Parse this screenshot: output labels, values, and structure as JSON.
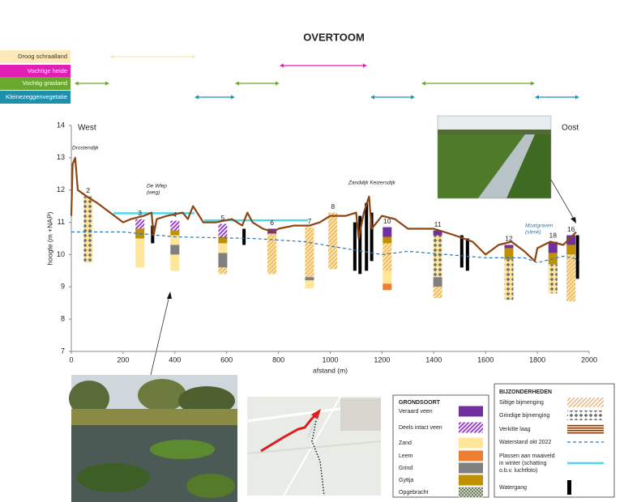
{
  "chart_data": {
    "type": "profile",
    "title": "OVERTOOM",
    "x_label": "afstand (m)",
    "y_label": "hoogte (m +NAP)",
    "xlim": [
      0,
      2000
    ],
    "ylim": [
      7,
      14
    ],
    "xticks": [
      0,
      200,
      400,
      600,
      800,
      1000,
      1200,
      1400,
      1600,
      1800,
      2000
    ],
    "yticks": [
      7,
      8,
      9,
      10,
      11,
      12,
      13,
      14
    ],
    "side_labels": [
      "West",
      "Oost"
    ],
    "annotations": [
      {
        "text": [
          "Drostendijk"
        ]
      },
      {
        "text": [
          "De Wlep",
          "(weg)"
        ]
      },
      {
        "text": [
          "Zanddijk Keizersdijk"
        ]
      },
      {
        "text": [
          "Moatgraven",
          "(slenk)"
        ],
        "color": "#2e75b6"
      }
    ],
    "vegetation": [
      {
        "name": "Droog schraalland",
        "color": "#fde9b8",
        "ranges": [
          [
            147,
            482
          ]
        ]
      },
      {
        "name": "Vochtige heide",
        "color": "#e21fb4",
        "ranges": [
          [
            804,
            1142
          ]
        ]
      },
      {
        "name": "Vochtig grasland",
        "color": "#6aa82d",
        "ranges": [
          [
            12,
            147
          ],
          [
            632,
            804
          ],
          [
            1352,
            1790
          ]
        ]
      },
      {
        "name": "Kleinezeggenvegetatie",
        "color": "#1f8fae",
        "ranges": [
          [
            476,
            632
          ],
          [
            1155,
            1327
          ],
          [
            1790,
            1962
          ]
        ]
      }
    ],
    "profile": {
      "color": "#8b4513",
      "x": [
        0,
        5,
        15,
        25,
        60,
        100,
        150,
        200,
        230,
        280,
        310,
        318,
        330,
        370,
        430,
        450,
        470,
        510,
        560,
        620,
        660,
        680,
        700,
        740,
        780,
        800,
        860,
        920,
        960,
        1000,
        1060,
        1100,
        1110,
        1130,
        1150,
        1160,
        1200,
        1250,
        1300,
        1400,
        1480,
        1550,
        1600,
        1650,
        1700,
        1750,
        1790,
        1800,
        1850,
        1900,
        1950
      ],
      "values": [
        11.2,
        12.8,
        13.0,
        12.0,
        11.8,
        11.6,
        11.3,
        11.0,
        11.1,
        11.2,
        11.3,
        10.6,
        11.1,
        11.2,
        11.3,
        11.1,
        11.5,
        11.0,
        11.0,
        11.1,
        10.9,
        11.3,
        11.0,
        10.8,
        10.7,
        10.8,
        10.9,
        10.9,
        11.0,
        11.2,
        11.2,
        11.3,
        10.5,
        11.3,
        11.8,
        10.8,
        11.2,
        11.1,
        10.8,
        10.8,
        10.6,
        10.4,
        10.0,
        10.3,
        10.4,
        10.1,
        9.8,
        10.2,
        10.4,
        10.3,
        10.7
      ]
    },
    "water_level": {
      "x": [
        0,
        200,
        400,
        700,
        900,
        1050,
        1200,
        1300,
        1450,
        1600,
        1750,
        1800,
        1900,
        1960
      ],
      "values": [
        10.7,
        10.7,
        10.55,
        10.5,
        10.4,
        10.2,
        10.0,
        10.1,
        10.0,
        9.9,
        9.9,
        9.75,
        9.95,
        9.85
      ]
    },
    "pools": [
      {
        "from": 163,
        "to": 476,
        "level": 11.28
      },
      {
        "from": 513,
        "to": 914,
        "level": 11.06
      }
    ],
    "ditches": [
      {
        "x": 314,
        "top": 10.9,
        "bottom": 10.35
      },
      {
        "x": 667,
        "top": 10.8,
        "bottom": 10.3
      },
      {
        "x": 1095,
        "top": 11.0,
        "bottom": 9.5
      },
      {
        "x": 1115,
        "top": 11.2,
        "bottom": 9.4
      },
      {
        "x": 1140,
        "top": 11.6,
        "bottom": 9.5
      },
      {
        "x": 1160,
        "top": 11.3,
        "bottom": 9.8
      },
      {
        "x": 1508,
        "top": 10.6,
        "bottom": 9.6
      },
      {
        "x": 1530,
        "top": 10.5,
        "bottom": 9.5
      },
      {
        "x": 1955,
        "top": 10.6,
        "bottom": 9.25
      }
    ],
    "boreholes": [
      {
        "label": "2",
        "x": 65,
        "layers": [
          {
            "top": 11.8,
            "bottom": 9.75,
            "soil": "Zand",
            "admix": "Grindige bijmenging"
          }
        ]
      },
      {
        "label": "3",
        "x": 265,
        "layers": [
          {
            "top": 11.1,
            "bottom": 10.8,
            "soil": "Deels intact veen"
          },
          {
            "top": 10.8,
            "bottom": 10.5,
            "soil": "Gyttja"
          },
          {
            "top": 10.5,
            "bottom": 9.6,
            "soil": "Zand"
          }
        ]
      },
      {
        "label": "4",
        "x": 400,
        "layers": [
          {
            "top": 11.05,
            "bottom": 10.75,
            "soil": "Deels intact veen"
          },
          {
            "top": 10.75,
            "bottom": 10.6,
            "soil": "Gyttja"
          },
          {
            "top": 10.6,
            "bottom": 10.3,
            "soil": "Zand"
          },
          {
            "top": 10.3,
            "bottom": 10.0,
            "soil": "Grind"
          },
          {
            "top": 10.0,
            "bottom": 9.5,
            "soil": "Zand"
          }
        ]
      },
      {
        "label": "5",
        "x": 585,
        "layers": [
          {
            "top": 10.95,
            "bottom": 10.55,
            "soil": "Deels intact veen"
          },
          {
            "top": 10.55,
            "bottom": 10.35,
            "soil": "Gyttja"
          },
          {
            "top": 10.35,
            "bottom": 10.05,
            "soil": "Zand"
          },
          {
            "top": 10.05,
            "bottom": 9.6,
            "soil": "Grind"
          },
          {
            "top": 9.6,
            "bottom": 9.4,
            "soil": "Zand",
            "admix": "Siltige bijmenging"
          }
        ]
      },
      {
        "label": "6",
        "x": 775,
        "layers": [
          {
            "top": 10.8,
            "bottom": 10.65,
            "soil": "Veraard veen"
          },
          {
            "top": 10.65,
            "bottom": 9.4,
            "soil": "Zand",
            "admix": "Siltige bijmenging"
          }
        ]
      },
      {
        "label": "7",
        "x": 920,
        "layers": [
          {
            "top": 10.85,
            "bottom": 9.3,
            "soil": "Zand",
            "admix": "Siltige bijmenging"
          },
          {
            "top": 9.3,
            "bottom": 9.2,
            "soil": "Grind"
          },
          {
            "top": 9.2,
            "bottom": 8.95,
            "soil": "Zand"
          }
        ]
      },
      {
        "label": "8",
        "x": 1010,
        "layers": [
          {
            "top": 11.3,
            "bottom": 9.55,
            "soil": "Zand",
            "admix": "Siltige bijmenging"
          }
        ]
      },
      {
        "label": "10",
        "x": 1220,
        "layers": [
          {
            "top": 10.85,
            "bottom": 10.55,
            "soil": "Veraard veen"
          },
          {
            "top": 10.55,
            "bottom": 10.35,
            "soil": "Gyttja"
          },
          {
            "top": 10.35,
            "bottom": 9.5,
            "soil": "Zand",
            "admix": "Siltige bijmenging"
          },
          {
            "top": 9.5,
            "bottom": 9.1,
            "soil": "Zand"
          },
          {
            "top": 9.1,
            "bottom": 8.9,
            "soil": "Leem"
          }
        ]
      },
      {
        "label": "11",
        "x": 1415,
        "layers": [
          {
            "top": 10.75,
            "bottom": 10.6,
            "soil": "Veraard veen"
          },
          {
            "top": 10.6,
            "bottom": 9.3,
            "soil": "Zand",
            "admix": "Grindige bijmenging"
          },
          {
            "top": 9.3,
            "bottom": 9.0,
            "soil": "Grind"
          },
          {
            "top": 9.0,
            "bottom": 8.65,
            "soil": "Zand",
            "admix": "Siltige bijmenging"
          }
        ]
      },
      {
        "label": "12",
        "x": 1690,
        "layers": [
          {
            "top": 10.3,
            "bottom": 10.2,
            "soil": "Veraard veen"
          },
          {
            "top": 10.2,
            "bottom": 9.85,
            "soil": "Gyttja"
          },
          {
            "top": 9.85,
            "bottom": 8.6,
            "soil": "Zand",
            "admix": "Grindige bijmenging"
          }
        ]
      },
      {
        "label": "18",
        "x": 1860,
        "layers": [
          {
            "top": 10.4,
            "bottom": 10.05,
            "soil": "Veraard veen"
          },
          {
            "top": 10.05,
            "bottom": 9.7,
            "soil": "Gyttja"
          },
          {
            "top": 9.7,
            "bottom": 8.8,
            "soil": "Zand",
            "admix": "Grindige bijmenging"
          }
        ]
      },
      {
        "label": "16",
        "x": 1930,
        "layers": [
          {
            "top": 10.6,
            "bottom": 10.3,
            "soil": "Veraard veen"
          },
          {
            "top": 10.3,
            "bottom": 10.0,
            "soil": "Gyttja"
          },
          {
            "top": 10.0,
            "bottom": 8.55,
            "soil": "Zand",
            "admix": "Siltige bijmenging"
          }
        ]
      }
    ],
    "legend_soil": {
      "title": "GRONDSOORT",
      "items": [
        {
          "label": "Veraard veen",
          "color": "#7030a0"
        },
        {
          "label": "Deels intact veen",
          "color": "#9b3fd1"
        },
        {
          "label": "Zand",
          "color": "#ffe699"
        },
        {
          "label": "Leem",
          "color": "#ed7d31"
        },
        {
          "label": "Grind",
          "color": "#808080"
        },
        {
          "label": "Gyttja",
          "color": "#bf9000"
        },
        {
          "label": "Opgebracht",
          "color": "#2e3b1f"
        }
      ]
    },
    "legend_extra": {
      "title": "BIJZONDERHEDEN",
      "items": [
        {
          "label": [
            "Siltige bijmenging"
          ],
          "color": "#e8a86a"
        },
        {
          "label": [
            "Grindige bijmenging"
          ],
          "color": "#6f6f6f"
        },
        {
          "label": [
            "Verkitte laag"
          ],
          "color": "#843c0c"
        },
        {
          "label": [
            "Waterstand okt 2022"
          ],
          "color": "#2e75b6"
        },
        {
          "label": [
            "Plassen aan maaiveld",
            "in winter (schatting",
            "o.b.v. luchtfoto)"
          ],
          "color": "#4fd6e8"
        },
        {
          "label": [
            "Watergang"
          ],
          "color": "#000000"
        }
      ]
    }
  }
}
